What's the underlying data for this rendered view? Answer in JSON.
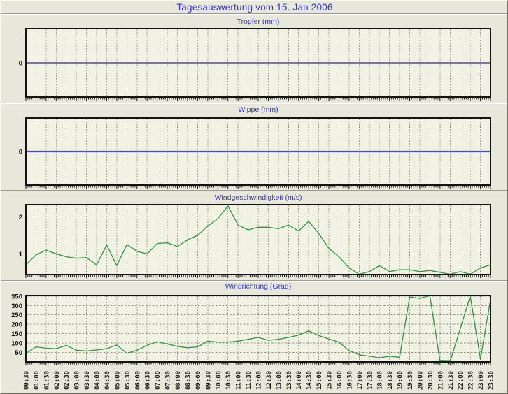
{
  "window": {
    "title": "Tagesauswertung vom 15. Jan 2006"
  },
  "colors": {
    "background": "#e8e8da",
    "plot_background": "#f1f1e4",
    "title_blue": "#3535cd",
    "grid_color": "#8f8f84",
    "border_color": "#141414",
    "tick_color": "#141414",
    "axis_label_color": "#1f1f1f",
    "tropfer_line": "#2b2ba6",
    "wippe_line": "#4b4bc6",
    "wind_line": "#2f9540",
    "divider_dark": "#9b9b8f",
    "divider_light": "#ffffff"
  },
  "time_labels": [
    "00:30",
    "01:00",
    "01:30",
    "02:00",
    "02:30",
    "03:00",
    "03:30",
    "04:00",
    "04:30",
    "05:00",
    "05:30",
    "06:00",
    "06:30",
    "07:00",
    "07:30",
    "08:00",
    "08:30",
    "09:00",
    "09:30",
    "10:00",
    "10:30",
    "11:00",
    "11:30",
    "12:00",
    "12:30",
    "13:00",
    "13:30",
    "14:00",
    "14:30",
    "15:00",
    "15:30",
    "16:00",
    "16:30",
    "17:00",
    "17:30",
    "18:00",
    "18:30",
    "19:00",
    "19:30",
    "20:00",
    "20:30",
    "21:00",
    "21:30",
    "22:00",
    "22:30",
    "23:00",
    "23:30"
  ],
  "chart_data": [
    {
      "type": "line",
      "name": "tropfer",
      "title": "Tropfer (mm)",
      "x_categories": "time_labels (shared, 00:30 to 23:30 every 30 min)",
      "y_ticks": [
        0
      ],
      "y_gridlines": [],
      "ylim": [
        -1,
        1
      ],
      "constant_value": 0,
      "line_color": "#2b2ba6",
      "line_width": 1.2,
      "grid": "vertical-dashed"
    },
    {
      "type": "line",
      "name": "wippe",
      "title": "Wippe (mm)",
      "x_categories": "time_labels (shared, 00:30 to 23:30 every 30 min)",
      "y_ticks": [
        0
      ],
      "y_gridlines": [],
      "ylim": [
        -1,
        1
      ],
      "constant_value": 0,
      "line_color": "#4b4bc6",
      "line_width": 2.2,
      "grid": "vertical-dashed"
    },
    {
      "type": "line",
      "name": "windgeschwindigkeit",
      "title": "Windgeschwindigkeit (m/s)",
      "x_categories": "time_labels (shared, 00:30 to 23:30 every 30 min)",
      "y_ticks": [
        1,
        2
      ],
      "y_gridlines": [
        1,
        2
      ],
      "ylim": [
        0.44,
        2.33
      ],
      "values": [
        0.7,
        0.97,
        1.1,
        1.0,
        0.92,
        0.88,
        0.9,
        0.7,
        1.24,
        0.68,
        1.25,
        1.07,
        1.0,
        1.28,
        1.3,
        1.2,
        1.38,
        1.5,
        1.75,
        1.95,
        2.3,
        1.78,
        1.65,
        1.72,
        1.72,
        1.68,
        1.78,
        1.62,
        1.88,
        1.55,
        1.15,
        0.92,
        0.62,
        0.45,
        0.52,
        0.68,
        0.52,
        0.57,
        0.57,
        0.52,
        0.55,
        0.5,
        0.45,
        0.52,
        0.45,
        0.62,
        0.7
      ],
      "line_color": "#2f9540",
      "line_width": 1.3,
      "grid": "both-dashed"
    },
    {
      "type": "line",
      "name": "windrichtung",
      "title": "Windrichtung (Grad)",
      "x_categories": "time_labels (shared, 00:30 to 23:30 every 30 min)",
      "y_ticks": [
        50,
        100,
        150,
        200,
        250,
        300,
        350
      ],
      "y_gridlines": [
        50,
        100,
        150,
        200,
        250,
        300,
        350
      ],
      "ylim": [
        0,
        353
      ],
      "values": [
        45,
        80,
        73,
        70,
        88,
        62,
        58,
        63,
        70,
        90,
        45,
        62,
        88,
        107,
        95,
        82,
        75,
        80,
        110,
        105,
        105,
        110,
        120,
        130,
        115,
        120,
        130,
        142,
        165,
        140,
        122,
        105,
        60,
        38,
        30,
        22,
        30,
        25,
        345,
        338,
        352,
        5,
        3,
        175,
        350,
        15,
        330
      ],
      "line_color": "#2f9540",
      "line_width": 1.3,
      "grid": "both-dashed",
      "x_labels_shown": true
    }
  ]
}
